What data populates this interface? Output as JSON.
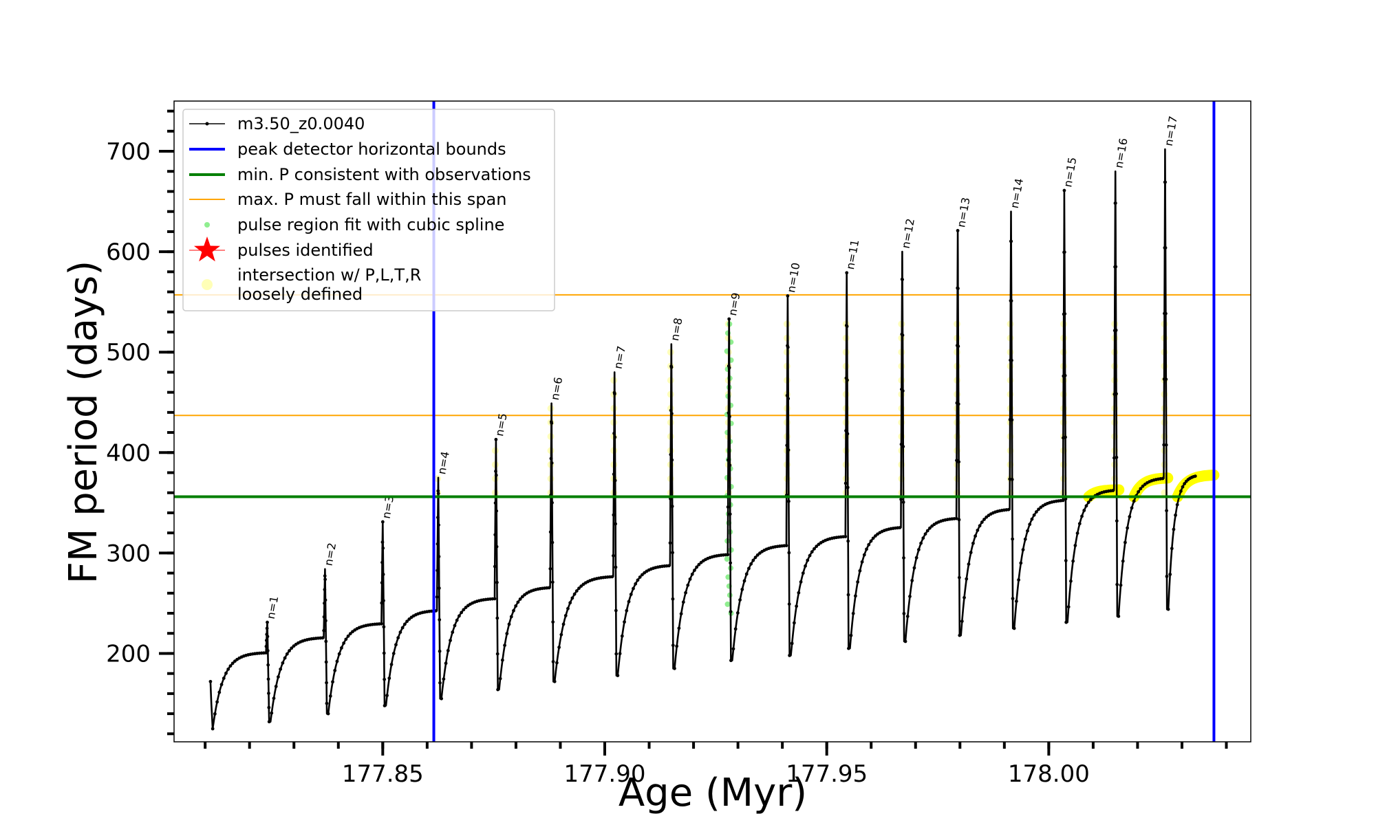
{
  "chart_data": {
    "type": "line",
    "title": "",
    "xlabel": "Age (Myr)",
    "ylabel": "FM period (days)",
    "xlim": [
      177.803,
      178.0455
    ],
    "ylim": [
      112,
      750
    ],
    "x_ticks": [
      177.85,
      177.9,
      177.95,
      178.0
    ],
    "x_tick_labels": [
      "177.85",
      "177.90",
      "177.95",
      "178.00"
    ],
    "y_ticks": [
      200,
      300,
      400,
      500,
      600,
      700
    ],
    "y_tick_labels": [
      "200",
      "300",
      "400",
      "500",
      "600",
      "700"
    ],
    "x_minor_step": 0.01,
    "y_minor_step": 20,
    "grid": false,
    "legend_position": "upper-left",
    "legend": [
      {
        "label": "m3.50_z0.0040",
        "style": "black-line-dots",
        "color": "#000000"
      },
      {
        "label": "peak detector horizontal bounds",
        "style": "line",
        "color": "#0000ff"
      },
      {
        "label": "min. P consistent with observations",
        "style": "line",
        "color": "#007f00"
      },
      {
        "label": "max. P must fall within this span",
        "style": "thin-line",
        "color": "#ffa500"
      },
      {
        "label": "pulse region fit with cubic spline",
        "style": "dot",
        "color": "#90ee90"
      },
      {
        "label": "pulses identified",
        "style": "star",
        "color": "#ff0000"
      },
      {
        "label": "intersection w/ P,L,T,R",
        "label2": "loosely defined",
        "style": "circle",
        "color": "#ffff99"
      }
    ],
    "vertical_lines": {
      "color": "#0000ff",
      "x": [
        177.8615,
        178.0372
      ]
    },
    "min_period_line": {
      "color": "#007f00",
      "y": 356
    },
    "max_period_span": {
      "color": "#ffa500",
      "y": [
        437,
        557
      ]
    },
    "series": [
      {
        "name": "m3.50_z0.0040",
        "color": "#000000",
        "start": {
          "x": 177.8112,
          "y": 172
        },
        "pulses": [
          {
            "n": 1,
            "x": 177.824,
            "top": 231,
            "base": 201,
            "min": 132
          },
          {
            "n": 2,
            "x": 177.837,
            "top": 284,
            "base": 216,
            "min": 140
          },
          {
            "n": 3,
            "x": 177.85,
            "top": 331,
            "base": 230,
            "min": 148
          },
          {
            "n": 4,
            "x": 177.8625,
            "top": 375,
            "base": 243,
            "min": 155
          },
          {
            "n": 5,
            "x": 177.8755,
            "top": 413,
            "base": 255,
            "min": 164
          },
          {
            "n": 6,
            "x": 177.888,
            "top": 449,
            "base": 266,
            "min": 172
          },
          {
            "n": 7,
            "x": 177.9022,
            "top": 480,
            "base": 277,
            "min": 178
          },
          {
            "n": 8,
            "x": 177.915,
            "top": 508,
            "base": 288,
            "min": 185
          },
          {
            "n": 9,
            "x": 177.928,
            "top": 533,
            "base": 299,
            "min": 193
          },
          {
            "n": 10,
            "x": 177.9412,
            "top": 556,
            "base": 308,
            "min": 198
          },
          {
            "n": 11,
            "x": 177.9545,
            "top": 579,
            "base": 317,
            "min": 205
          },
          {
            "n": 12,
            "x": 177.967,
            "top": 600,
            "base": 326,
            "min": 212
          },
          {
            "n": 13,
            "x": 177.9795,
            "top": 621,
            "base": 335,
            "min": 218
          },
          {
            "n": 14,
            "x": 177.9915,
            "top": 640,
            "base": 344,
            "min": 225
          },
          {
            "n": 15,
            "x": 178.0035,
            "top": 661,
            "base": 353,
            "min": 231
          },
          {
            "n": 16,
            "x": 178.015,
            "top": 680,
            "base": 363,
            "min": 237
          },
          {
            "n": 17,
            "x": 178.0262,
            "top": 702,
            "base": 375,
            "min": 244
          }
        ],
        "end": {
          "x": 178.033,
          "y": 378
        }
      }
    ],
    "spline_fit_pulse": 9,
    "yellow_segments": [
      [
        178.009,
        178.0158
      ],
      [
        178.0192,
        178.0268
      ],
      [
        178.029,
        178.0372
      ]
    ]
  }
}
